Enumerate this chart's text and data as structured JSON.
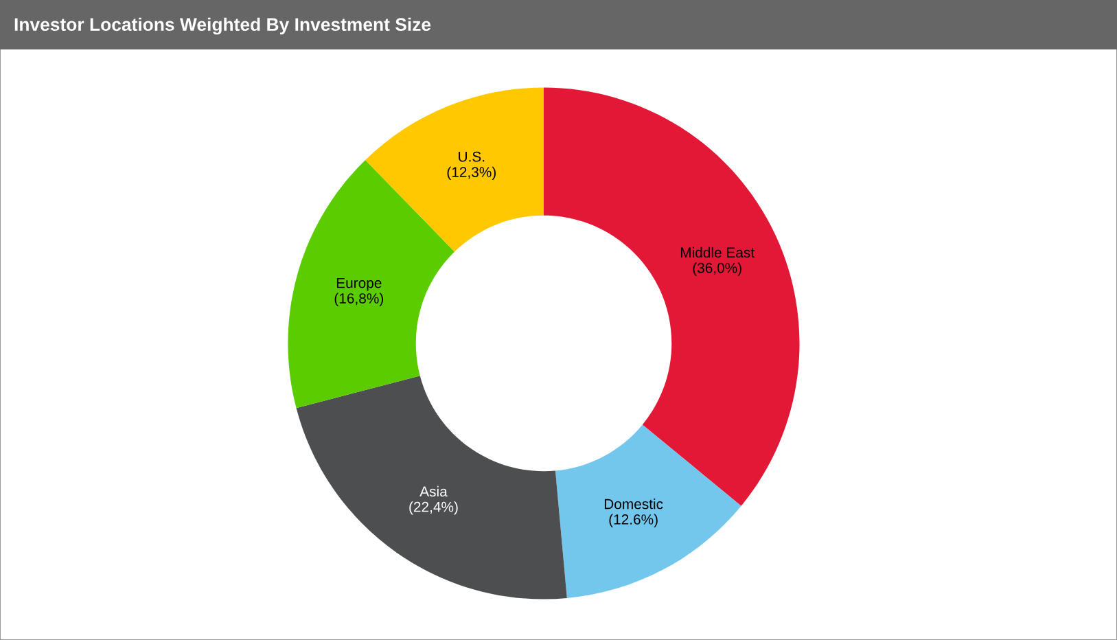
{
  "chart_data": {
    "type": "donut",
    "title": "Investor Locations Weighted By Investment Size",
    "categories": [
      "Middle East",
      "Domestic",
      "Asia",
      "Europe",
      "U.S."
    ],
    "values": [
      36.0,
      12.6,
      22.4,
      16.8,
      12.3
    ],
    "value_labels": [
      "(36,0%)",
      "(12.6%)",
      "(22,4%)",
      "(16,8%)",
      "(12,3%)"
    ],
    "colors": [
      "#e31837",
      "#74c7ec",
      "#4d4e50",
      "#5bcc00",
      "#ffc800"
    ],
    "legend": false
  }
}
